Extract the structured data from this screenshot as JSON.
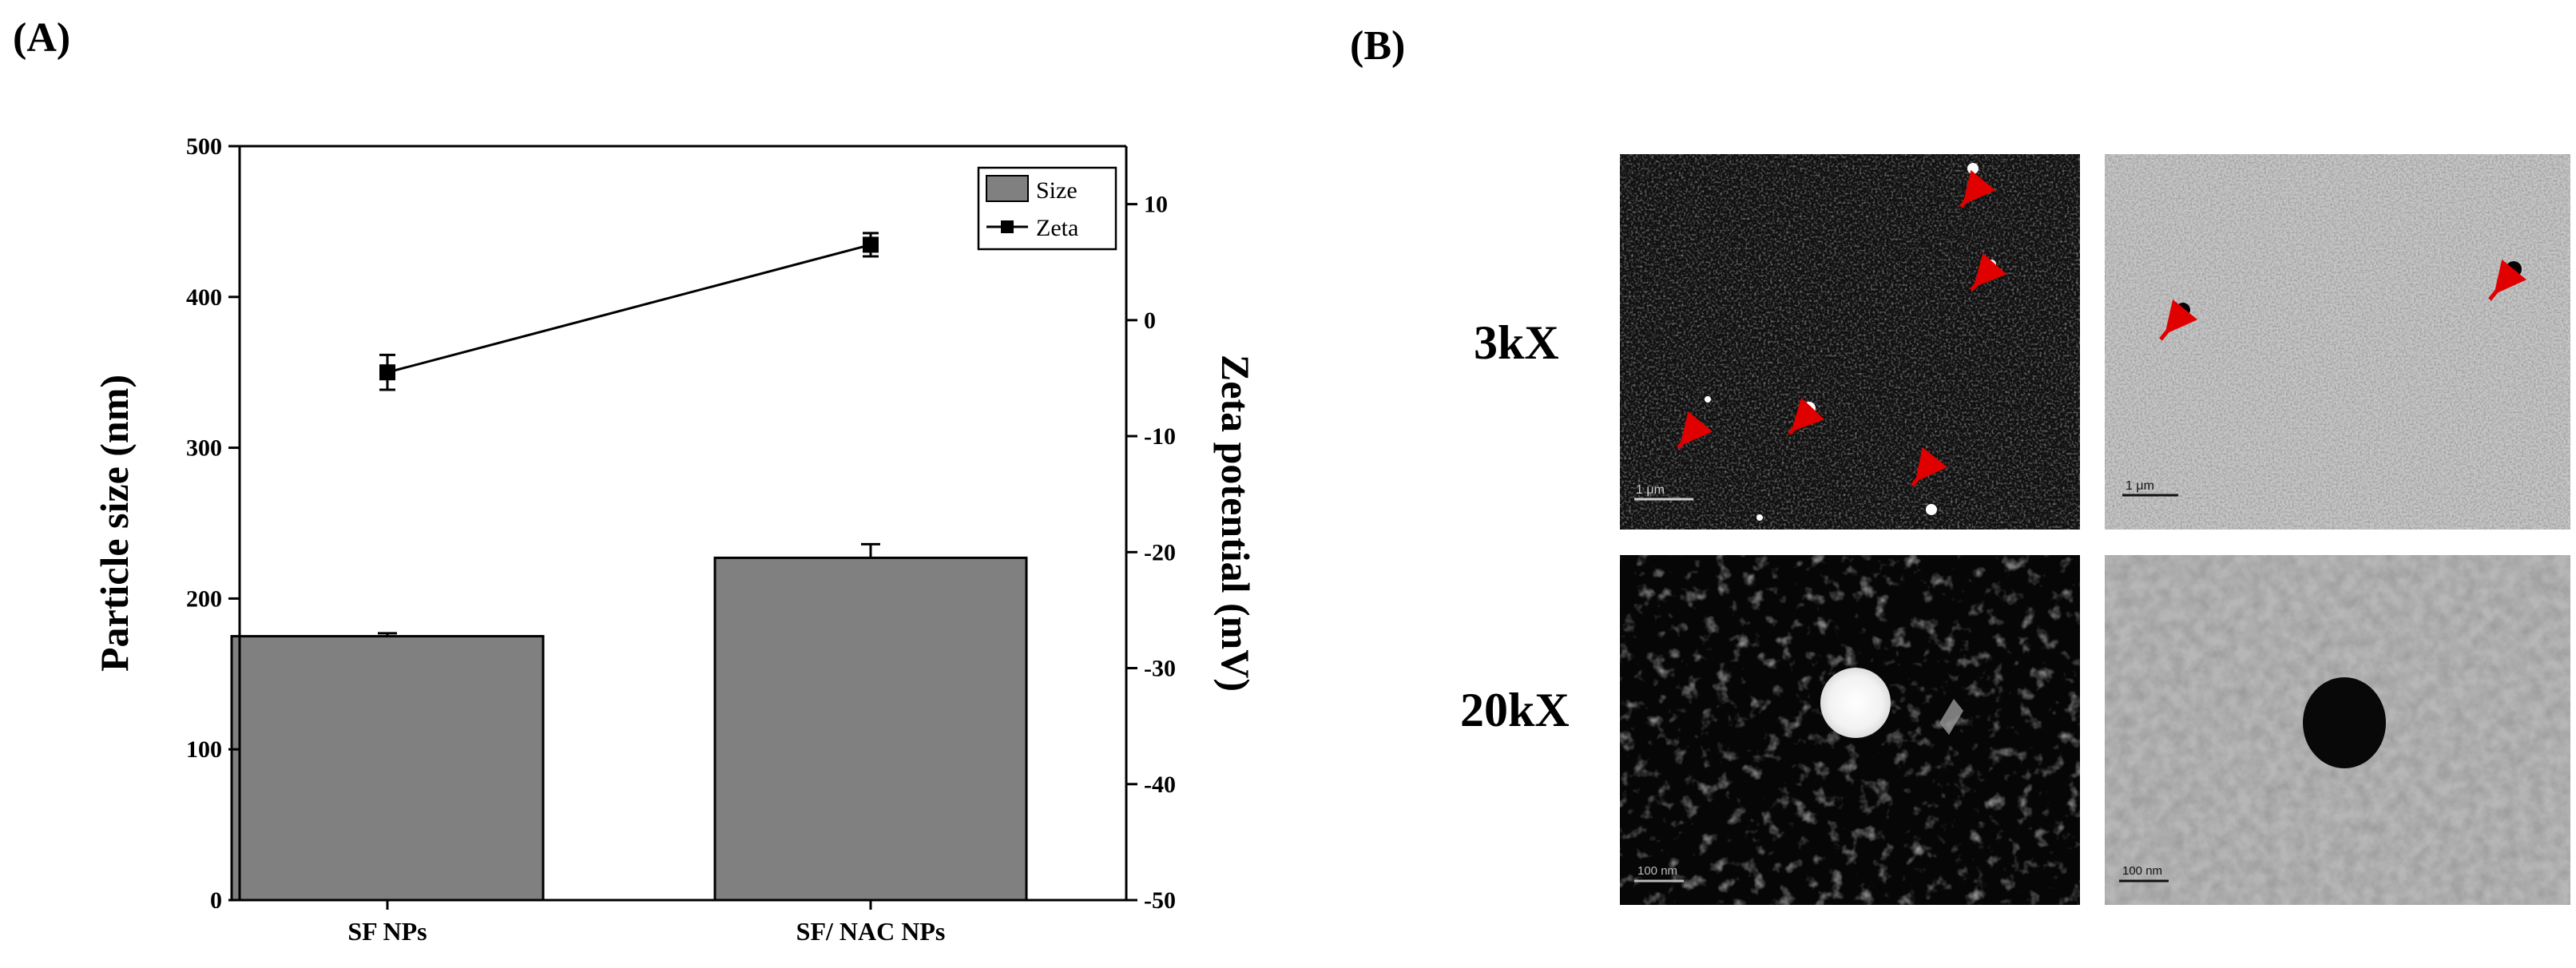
{
  "panels": {
    "a_label": "(A)",
    "b_label": "(B)"
  },
  "chart_data": {
    "type": "bar",
    "categories": [
      "SF NPs",
      "SF/ NAC NPs"
    ],
    "series": [
      {
        "name": "Size",
        "type": "bar",
        "axis": "left",
        "values": [
          175,
          227
        ],
        "errors": [
          2,
          9
        ],
        "color": "#808080"
      },
      {
        "name": "Zeta",
        "type": "line",
        "axis": "right",
        "values": [
          -4.5,
          6.5
        ],
        "errors": [
          1.5,
          1.0
        ],
        "color": "#000000"
      }
    ],
    "ylabel": "Particle size (nm)",
    "ylim": [
      0,
      500
    ],
    "yticks": [
      0,
      100,
      200,
      300,
      400,
      500
    ],
    "y2label": "Zeta potential (mV)",
    "y2lim": [
      -50,
      15
    ],
    "y2ticks": [
      -50,
      -40,
      -30,
      -20,
      -10,
      0,
      10
    ],
    "legend": "top-right",
    "grid": false
  },
  "micrographs": {
    "row_labels": [
      "3kX",
      "20kX"
    ],
    "scale_labels": [
      "1 μm",
      "1 μm",
      "100 nm",
      "100 nm"
    ],
    "arrow_color": "#e00000"
  }
}
